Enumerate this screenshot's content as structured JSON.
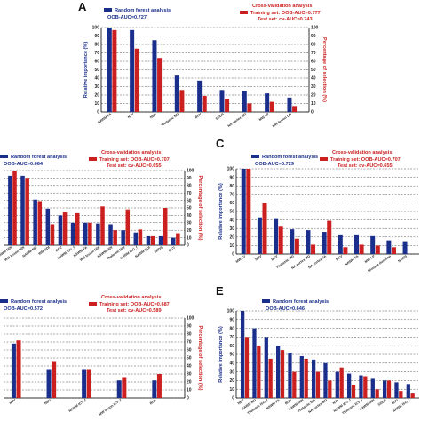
{
  "colors": {
    "rf": "#1a2f8c",
    "cv": "#cc1f1f",
    "grid": "#555555"
  },
  "chart_data": [
    {
      "type": "bar",
      "panel": "A",
      "legend": {
        "rf_title": "Random forest analysis",
        "rf_auc": "OOB-AUC=0.727",
        "cv_title": "Cross-validation analysis",
        "cv_train": "Training set: OOB-AUC=0.777",
        "cv_test": "Test set: cv-AUC=0.743"
      },
      "ylabel_left": "Relative importance (%)",
      "ylabel_right": "Percentage of selection (%)",
      "ylim": [
        0,
        100
      ],
      "yticks": [
        "0",
        "10",
        "20",
        "30",
        "40",
        "50",
        "60",
        "70",
        "80",
        "90",
        "100"
      ],
      "categories": [
        "NAWM FA",
        "NTV",
        "NBV",
        "Thalamic MD",
        "BCV",
        "SDDS",
        "NA cortex MD",
        "MW LP",
        "MW lesion DD"
      ],
      "series": [
        {
          "name": "Relative importance",
          "values": [
            100,
            97,
            85,
            43,
            37,
            26,
            25,
            22,
            17
          ]
        },
        {
          "name": "Percentage of selection",
          "values": [
            97,
            75,
            64,
            26,
            19,
            15,
            10,
            12,
            7
          ]
        }
      ]
    },
    {
      "type": "bar",
      "panel": "B",
      "legend": {
        "rf_title": "Random forest analysis",
        "rf_auc": "OOB-AUC=0.664",
        "cv_title": "Cross-validation analysis",
        "cv_train": "Training set: OOB-AUC=0.707",
        "cv_test": "Test set: cv-AUC=0.655"
      },
      "ylabel_right": "Percentage of selection (%)",
      "ylim": [
        0,
        100
      ],
      "yticks": [
        "0",
        "10",
        "20",
        "30",
        "40",
        "50",
        "60",
        "70",
        "80",
        "90",
        "100"
      ],
      "categories": [
        "NAWM DDI",
        "WM lesion DDI",
        "NAWM MD",
        "WM DDI",
        "BCV",
        "NAWM ICV_f",
        "NAWM FA",
        "WM lesion DDI",
        "NAWM DDI",
        "Thalamic DDI",
        "NAWM ISO_f",
        "NAWM DDI",
        "SDDS",
        "BCV"
      ],
      "series": [
        {
          "name": "Relative importance",
          "values": [
            93,
            93,
            61,
            49,
            40,
            30,
            30,
            29,
            28,
            20,
            17,
            12,
            12,
            10
          ]
        },
        {
          "name": "Percentage of selection",
          "values": [
            100,
            90,
            59,
            28,
            44,
            43,
            30,
            52,
            20,
            48,
            21,
            12,
            50,
            16
          ]
        }
      ]
    },
    {
      "type": "bar",
      "panel": "C",
      "legend": {
        "rf_title": "Random forest analysis",
        "rf_auc": "OOB-AUC=0.729",
        "cv_title": "Cross-validation analysis",
        "cv_train": "Training set: OOB-AUC=0.707",
        "cv_test": "Test set: cv-AUC=0.655"
      },
      "ylabel_left": "Relative importance (%)",
      "ylabel_right": "Percentage of selection (%)",
      "ylim": [
        0,
        100
      ],
      "yticks": [
        "0",
        "10",
        "20",
        "30",
        "40",
        "50",
        "60",
        "70",
        "80",
        "90",
        "100"
      ],
      "categories": [
        "MW LV",
        "NBV",
        "BCV",
        "Thalamic MD",
        "NA cortex MD",
        "NA cortex FA",
        "BCV",
        "NAWM FA",
        "MW LP",
        "Disease duration",
        "NAWS"
      ],
      "series": [
        {
          "name": "Relative importance",
          "values": [
            100,
            43,
            41,
            29,
            28,
            26,
            22,
            22,
            21,
            16,
            15
          ]
        },
        {
          "name": "Percentage of selection",
          "values": [
            100,
            60,
            32,
            18,
            11,
            39,
            8,
            11,
            10,
            8,
            0
          ]
        }
      ]
    },
    {
      "type": "bar",
      "panel": "D",
      "legend": {
        "rf_title": "Random forest analysis",
        "rf_auc": "OOB-AUC=0.572",
        "cv_title": "Cross-validation analysis",
        "cv_train": "Training set: OOB-AUC=0.687",
        "cv_test": "Test set: cv-AUC=0.589"
      },
      "ylabel_right": "Percentage of selection (%)",
      "ylim": [
        0,
        100
      ],
      "yticks": [
        "0",
        "10",
        "20",
        "30",
        "40",
        "50",
        "60",
        "70",
        "80",
        "90",
        "100"
      ],
      "categories": [
        "NTV",
        "NBV",
        "NAWM ICV_f",
        "MW lesion ICV_f",
        "BCV"
      ],
      "series": [
        {
          "name": "Relative importance",
          "values": [
            68,
            35,
            35,
            22,
            22
          ]
        },
        {
          "name": "Percentage of selection",
          "values": [
            72,
            45,
            35,
            25,
            30
          ]
        }
      ]
    },
    {
      "type": "bar",
      "panel": "E",
      "legend": {
        "rf_title": "Random forest analysis",
        "rf_auc": "OOB-AUC=0.646"
      },
      "ylabel_left": "Relative importance (%)",
      "ylim": [
        0,
        100
      ],
      "yticks": [
        "0",
        "10",
        "20",
        "30",
        "40",
        "50",
        "60",
        "70",
        "80",
        "90",
        "100"
      ],
      "categories": [
        "NBV",
        "NAWM MD",
        "Thalamic ISO_f",
        "NAWM FA",
        "BCV",
        "NAWM DDI",
        "Thalamic MD",
        "NA cortex MD",
        "NTV",
        "NAWM ICV_f",
        "Thalamic ICV_f",
        "NAWM DDI",
        "SDDS",
        "BCV",
        "NAWM ISO_f"
      ],
      "series": [
        {
          "name": "Relative importance",
          "values": [
            100,
            80,
            70,
            60,
            52,
            48,
            44,
            40,
            30,
            28,
            26,
            22,
            20,
            18,
            16
          ]
        },
        {
          "name": "Percentage of selection",
          "values": [
            70,
            60,
            45,
            55,
            30,
            45,
            30,
            20,
            35,
            15,
            25,
            10,
            20,
            8,
            5
          ]
        }
      ]
    }
  ]
}
